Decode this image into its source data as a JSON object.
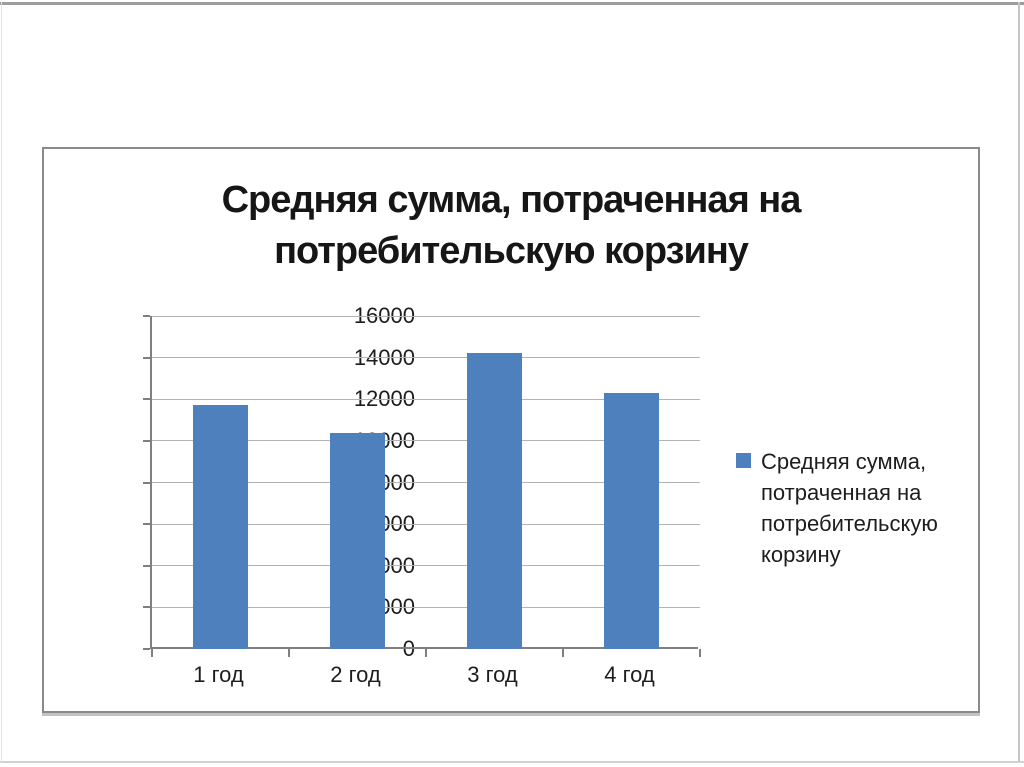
{
  "chart": {
    "title_lines": [
      "Средняя сумма, потраченная на",
      "потребительскую корзину"
    ],
    "legend_lines": [
      "Средняя сумма,",
      "потраченная на",
      "потребительскую",
      "корзину"
    ]
  },
  "chart_data": {
    "type": "bar",
    "title": "Средняя сумма, потраченная на потребительскую корзину",
    "categories": [
      "1 год",
      "2 год",
      "3 год",
      "4 год"
    ],
    "series": [
      {
        "name": "Средняя сумма, потраченная на потребительскую корзину",
        "values": [
          11700,
          10400,
          14200,
          12300
        ]
      }
    ],
    "xlabel": "",
    "ylabel": "",
    "ylim": [
      0,
      16000
    ],
    "yticks": [
      0,
      2000,
      4000,
      6000,
      8000,
      10000,
      12000,
      14000,
      16000
    ],
    "grid": "horizontal",
    "legend_position": "right",
    "bar_color": "#4d80bc"
  }
}
